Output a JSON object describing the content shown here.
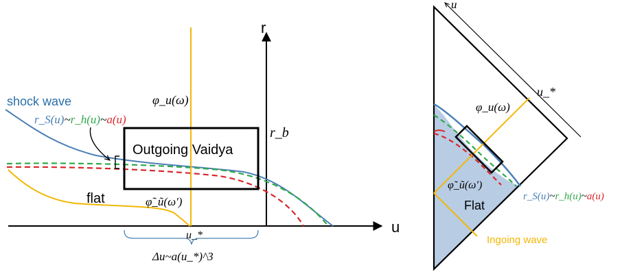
{
  "left_panel": {
    "axis_r_label": "r",
    "axis_u_label": "u",
    "shock_wave_label": "shock wave",
    "radii_label": {
      "rs": "r_S(u)",
      "tilde1": "~",
      "rh": "r_h(u)",
      "tilde2": "~",
      "a": "a(u)"
    },
    "box_label": "Outgoing Vaidya",
    "rb_label": "r_b",
    "phi_u_label": "φ_u(ω)",
    "phi_tilde_label": "φ̃_ũ(ω′)",
    "flat_label": "flat",
    "ustar_label": "u_*",
    "delta_u_label": "Δu~a(u_*)^3"
  },
  "right_panel": {
    "u_axis_label": "u",
    "ustar_label": "u_*",
    "phi_u_label": "φ_u(ω)",
    "phi_tilde_label": "φ̃_ũ(ω′)",
    "flat_label": "Flat",
    "radii_label": {
      "rs": "r_S(u)",
      "tilde1": "~",
      "rh": "r_h(u)",
      "tilde2": "~",
      "a": "a(u)"
    },
    "ingoing_label": "Ingoing wave"
  },
  "colors": {
    "shock": "#4a7fb5",
    "horizon": "#2ea84a",
    "apparent": "#d9262a",
    "orange": "#f2b705",
    "fill": "#b8cce4",
    "ink": "#000000"
  }
}
